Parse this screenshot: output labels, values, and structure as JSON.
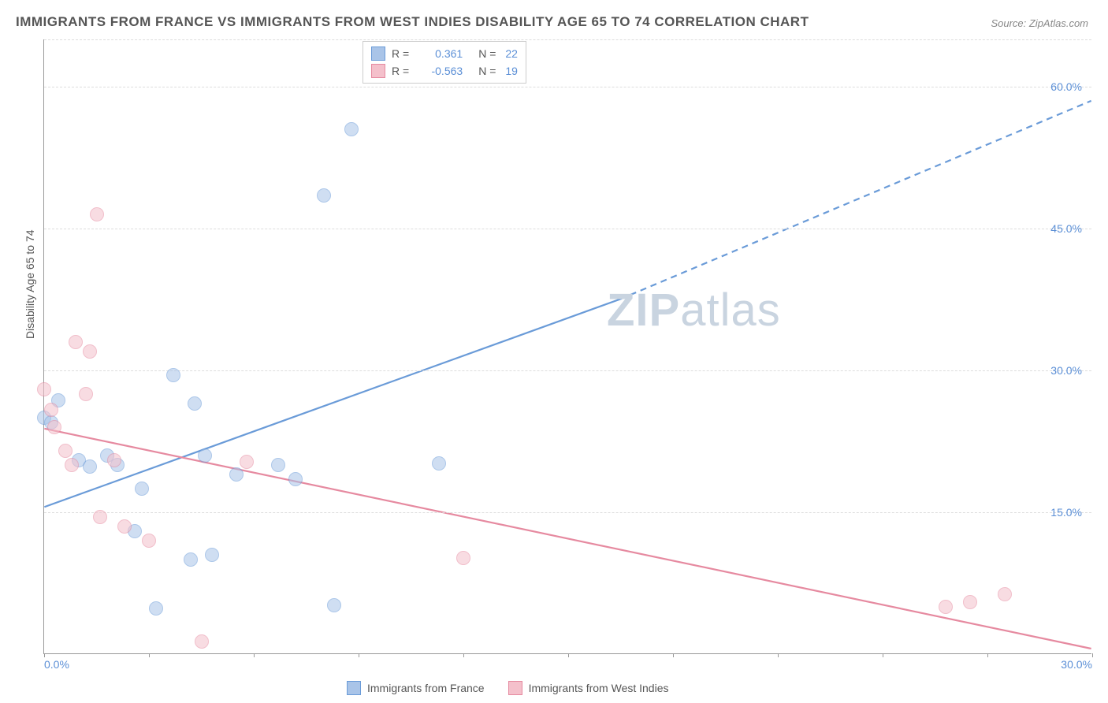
{
  "title": "IMMIGRANTS FROM FRANCE VS IMMIGRANTS FROM WEST INDIES DISABILITY AGE 65 TO 74 CORRELATION CHART",
  "source": "Source: ZipAtlas.com",
  "watermark_a": "ZIP",
  "watermark_b": "atlas",
  "yaxis_label": "Disability Age 65 to 74",
  "chart": {
    "type": "scatter",
    "xlim": [
      0,
      30
    ],
    "ylim": [
      0,
      65
    ],
    "background_color": "#ffffff",
    "grid_color": "#dddddd",
    "ytick_lines": [
      15,
      30,
      45,
      60
    ],
    "ytick_labels": [
      "15.0%",
      "30.0%",
      "45.0%",
      "60.0%"
    ],
    "xtick_marks": [
      0,
      3,
      6,
      9,
      12,
      15,
      18,
      21,
      24,
      27,
      30
    ],
    "x_first_label": "0.0%",
    "x_last_label": "30.0%",
    "marker_radius": 9,
    "marker_opacity": 0.55,
    "line_width": 2.2
  },
  "series": [
    {
      "name": "Immigrants from France",
      "color_fill": "#a9c4e8",
      "color_stroke": "#6a9bd8",
      "R": "0.361",
      "N": "22",
      "trend": {
        "x1": 0,
        "y1": 15.5,
        "x2": 16.5,
        "y2": 37.5,
        "x2_ext": 30,
        "y2_ext": 58.5
      },
      "points": [
        [
          0.0,
          25.0
        ],
        [
          0.2,
          24.5
        ],
        [
          1.0,
          20.5
        ],
        [
          1.3,
          19.8
        ],
        [
          2.1,
          20.0
        ],
        [
          2.8,
          17.5
        ],
        [
          2.6,
          13.0
        ],
        [
          3.7,
          29.5
        ],
        [
          4.3,
          26.5
        ],
        [
          4.6,
          21.0
        ],
        [
          3.2,
          4.8
        ],
        [
          4.2,
          10.0
        ],
        [
          4.8,
          10.5
        ],
        [
          6.7,
          20.0
        ],
        [
          7.2,
          18.5
        ],
        [
          8.3,
          5.2
        ],
        [
          8.0,
          48.5
        ],
        [
          8.8,
          55.5
        ],
        [
          11.3,
          20.2
        ],
        [
          0.4,
          26.8
        ],
        [
          1.8,
          21.0
        ],
        [
          5.5,
          19.0
        ]
      ]
    },
    {
      "name": "Immigrants from West Indies",
      "color_fill": "#f4c0cb",
      "color_stroke": "#e68aa0",
      "R": "-0.563",
      "N": "19",
      "trend": {
        "x1": 0,
        "y1": 23.8,
        "x2": 30,
        "y2": 0.5
      },
      "points": [
        [
          0.0,
          28.0
        ],
        [
          0.2,
          25.8
        ],
        [
          0.3,
          24.0
        ],
        [
          0.6,
          21.5
        ],
        [
          0.8,
          20.0
        ],
        [
          1.3,
          32.0
        ],
        [
          1.2,
          27.5
        ],
        [
          1.5,
          46.5
        ],
        [
          1.6,
          14.5
        ],
        [
          2.3,
          13.5
        ],
        [
          0.9,
          33.0
        ],
        [
          2.0,
          20.5
        ],
        [
          3.0,
          12.0
        ],
        [
          4.5,
          1.3
        ],
        [
          12.0,
          10.2
        ],
        [
          26.5,
          5.5
        ],
        [
          27.5,
          6.3
        ],
        [
          25.8,
          5.0
        ],
        [
          5.8,
          20.3
        ]
      ]
    }
  ],
  "legend_top": {
    "r_label": "R =",
    "n_label": "N ="
  },
  "text_color": "#555555",
  "tick_color": "#5b8fd6"
}
